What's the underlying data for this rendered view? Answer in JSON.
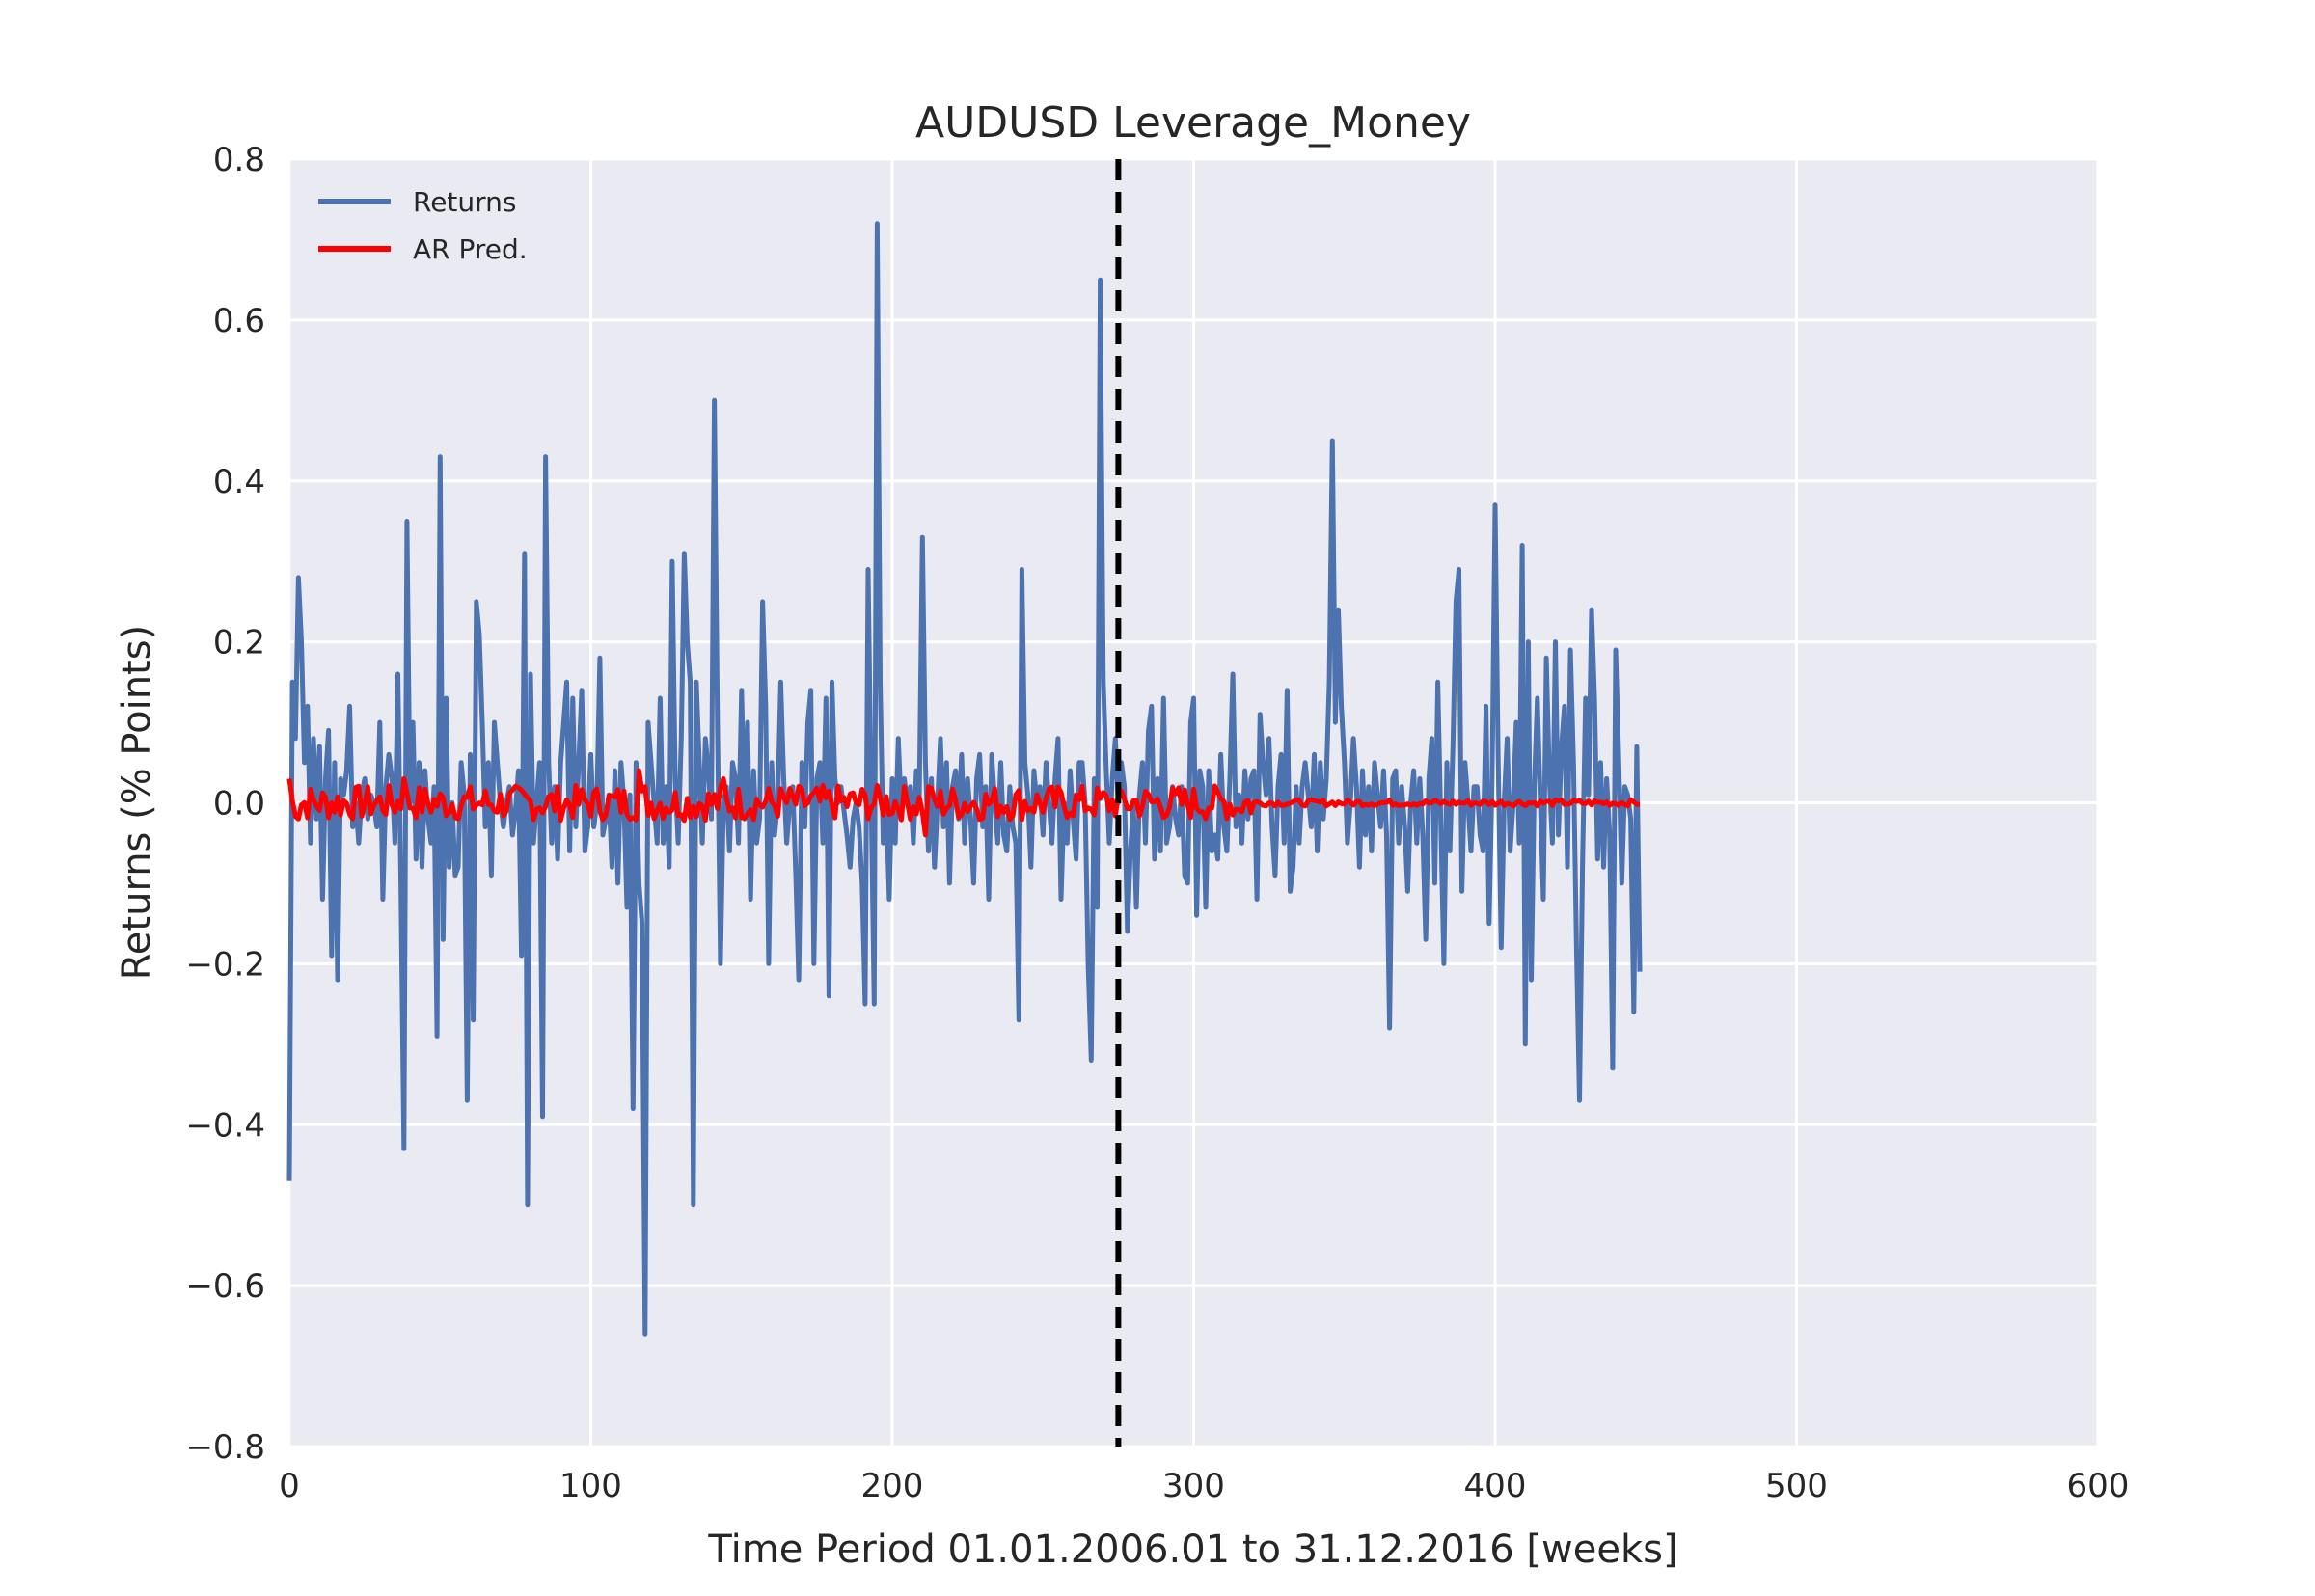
{
  "chart_data": {
    "type": "line",
    "title": "AUDUSD Leverage_Money",
    "xlabel": "Time Period 01.01.2006.01 to 31.12.2016 [weeks]",
    "ylabel": "Returns (% Points)",
    "xlim": [
      0,
      600
    ],
    "ylim": [
      -0.8,
      0.8
    ],
    "xticks": [
      0,
      100,
      200,
      300,
      400,
      500,
      600
    ],
    "yticks": [
      -0.8,
      -0.6,
      -0.4,
      -0.2,
      0.0,
      0.2,
      0.4,
      0.6,
      0.8
    ],
    "xtick_labels": [
      "0",
      "100",
      "200",
      "300",
      "400",
      "500",
      "600"
    ],
    "ytick_labels": [
      "−0.8",
      "−0.6",
      "−0.4",
      "−0.2",
      "0.0",
      "0.2",
      "0.4",
      "0.6",
      "0.8"
    ],
    "grid": true,
    "legend_position": "top-left",
    "background_color": "#EAEAF2",
    "vline": {
      "x": 275,
      "style": "dashed",
      "color": "#000000"
    },
    "series": [
      {
        "name": "Returns",
        "color": "#4C72B0",
        "x_start": 0,
        "x_step": 1,
        "y": [
          -0.47,
          0.15,
          0.08,
          0.28,
          0.2,
          0.05,
          0.12,
          -0.05,
          0.08,
          -0.02,
          0.07,
          -0.12,
          0.03,
          0.09,
          -0.19,
          0.05,
          -0.22,
          0.03,
          0.01,
          0.04,
          0.12,
          -0.03,
          0.0,
          -0.05,
          0.01,
          0.03,
          -0.02,
          0.01,
          0.0,
          -0.03,
          0.1,
          -0.12,
          0.02,
          0.06,
          0.03,
          -0.05,
          0.16,
          -0.1,
          -0.43,
          0.35,
          0.0,
          0.1,
          -0.07,
          0.05,
          -0.08,
          0.04,
          -0.02,
          -0.05,
          0.02,
          -0.29,
          0.43,
          -0.17,
          0.13,
          -0.08,
          0.0,
          -0.09,
          -0.08,
          0.05,
          0.01,
          -0.37,
          0.06,
          -0.27,
          0.25,
          0.21,
          0.1,
          -0.03,
          0.05,
          -0.09,
          0.1,
          0.05,
          0.0,
          -0.03,
          0.0,
          0.02,
          -0.04,
          -0.01,
          0.04,
          -0.19,
          0.31,
          -0.5,
          0.16,
          -0.05,
          0.0,
          0.05,
          -0.39,
          0.43,
          0.05,
          -0.05,
          0.02,
          -0.07,
          0.05,
          0.1,
          0.15,
          -0.06,
          0.13,
          -0.03,
          0.05,
          0.14,
          -0.06,
          -0.03,
          0.06,
          -0.03,
          0.0,
          0.18,
          -0.04,
          -0.02,
          0.01,
          -0.08,
          0.04,
          -0.1,
          0.05,
          0.0,
          -0.13,
          0.01,
          -0.38,
          0.05,
          -0.1,
          -0.15,
          -0.66,
          0.1,
          0.05,
          0.0,
          -0.05,
          0.13,
          -0.05,
          0.02,
          -0.08,
          0.3,
          0.03,
          -0.05,
          0.08,
          0.31,
          0.2,
          0.15,
          -0.5,
          0.15,
          0.05,
          -0.05,
          0.08,
          0.04,
          -0.02,
          0.5,
          0.1,
          -0.2,
          0.0,
          0.02,
          -0.06,
          0.05,
          0.03,
          -0.05,
          0.14,
          -0.02,
          0.1,
          -0.12,
          0.04,
          -0.05,
          -0.02,
          0.25,
          0.12,
          -0.2,
          0.05,
          -0.04,
          0.0,
          0.15,
          0.03,
          -0.05,
          0.0,
          0.02,
          -0.09,
          -0.22,
          0.05,
          -0.03,
          0.1,
          0.14,
          -0.2,
          0.03,
          0.05,
          -0.05,
          0.13,
          -0.24,
          0.15,
          0.03,
          0.0,
          0.02,
          -0.01,
          -0.04,
          -0.08,
          -0.02,
          0.0,
          -0.03,
          -0.1,
          -0.25,
          0.29,
          0.01,
          -0.25,
          0.72,
          0.15,
          -0.05,
          0.0,
          -0.12,
          0.03,
          -0.05,
          0.08,
          -0.01,
          0.03,
          0.0,
          0.02,
          -0.05,
          0.04,
          0.01,
          0.33,
          0.05,
          -0.06,
          0.03,
          -0.08,
          0.0,
          0.08,
          -0.03,
          0.05,
          -0.1,
          0.02,
          0.04,
          -0.02,
          0.06,
          -0.05,
          0.03,
          -0.02,
          -0.1,
          0.03,
          0.06,
          -0.03,
          0.02,
          -0.12,
          0.06,
          0.0,
          -0.05,
          0.05,
          -0.04,
          -0.06,
          0.02,
          -0.03,
          -0.05,
          -0.27,
          0.29,
          0.05,
          0.01,
          -0.08,
          0.04,
          0.0,
          0.02,
          -0.04,
          0.05,
          0.0,
          -0.05,
          0.03,
          0.08,
          -0.12,
          0.0,
          -0.05,
          0.04,
          -0.02,
          -0.07,
          0.05,
          0.05,
          0.0,
          -0.2,
          -0.32,
          0.03,
          -0.13,
          0.65,
          0.15,
          0.04,
          -0.05,
          0.03,
          0.08,
          0.0,
          0.05,
          0.02,
          -0.16,
          -0.06,
          0.0,
          -0.13,
          0.01,
          0.05,
          -0.05,
          0.09,
          0.12,
          -0.07,
          0.03,
          -0.06,
          0.13,
          -0.05,
          -0.03,
          0.02,
          -0.02,
          -0.04,
          0.02,
          -0.09,
          -0.1,
          0.1,
          0.13,
          -0.14,
          0.04,
          0.02,
          -0.13,
          0.04,
          -0.06,
          -0.04,
          -0.07,
          0.06,
          -0.03,
          -0.06,
          0.03,
          0.16,
          -0.03,
          0.01,
          -0.05,
          0.04,
          -0.02,
          0.03,
          0.04,
          -0.12,
          0.11,
          0.05,
          0.01,
          0.08,
          -0.03,
          -0.09,
          0.02,
          0.06,
          -0.05,
          0.14,
          -0.11,
          -0.08,
          0.02,
          -0.05,
          0.02,
          0.05,
          0.01,
          -0.03,
          0.06,
          -0.06,
          0.05,
          -0.02,
          0.03,
          0.15,
          0.45,
          0.1,
          0.24,
          0.12,
          0.05,
          -0.05,
          0.0,
          0.08,
          0.02,
          -0.08,
          0.04,
          -0.04,
          0.02,
          -0.06,
          0.05,
          0.01,
          -0.03,
          0.04,
          -0.04,
          -0.28,
          0.03,
          0.04,
          -0.05,
          0.02,
          -0.03,
          -0.11,
          0.0,
          0.04,
          -0.05,
          0.03,
          -0.04,
          -0.17,
          0.03,
          0.08,
          -0.1,
          0.15,
          -0.03,
          -0.2,
          0.05,
          -0.06,
          0.07,
          0.25,
          0.29,
          -0.11,
          0.05,
          0.0,
          -0.06,
          0.02,
          0.02,
          -0.04,
          -0.06,
          0.12,
          -0.15,
          0.03,
          0.37,
          0.06,
          -0.18,
          0.0,
          0.08,
          -0.06,
          0.0,
          0.1,
          -0.05,
          0.32,
          -0.3,
          0.2,
          -0.22,
          0.02,
          0.13,
          0.0,
          -0.12,
          0.18,
          0.03,
          -0.05,
          0.2,
          -0.04,
          0.07,
          0.12,
          -0.08,
          0.19,
          0.05,
          -0.18,
          -0.37,
          -0.08,
          0.13,
          0.01,
          0.24,
          0.13,
          -0.07,
          0.05,
          -0.08,
          0.03,
          -0.04,
          -0.33,
          0.19,
          0.06,
          -0.1,
          0.02,
          0.01,
          -0.02,
          -0.26,
          0.07,
          -0.21
        ]
      },
      {
        "name": "AR Pred.",
        "color": "#FF0000",
        "x_start": 0,
        "x_step": 1,
        "y_source": "AR prediction series, values ranging approximately from -0.05 to 0.04 around 0.0 through week 320, then approximately 0.0 to week 549"
      }
    ]
  }
}
